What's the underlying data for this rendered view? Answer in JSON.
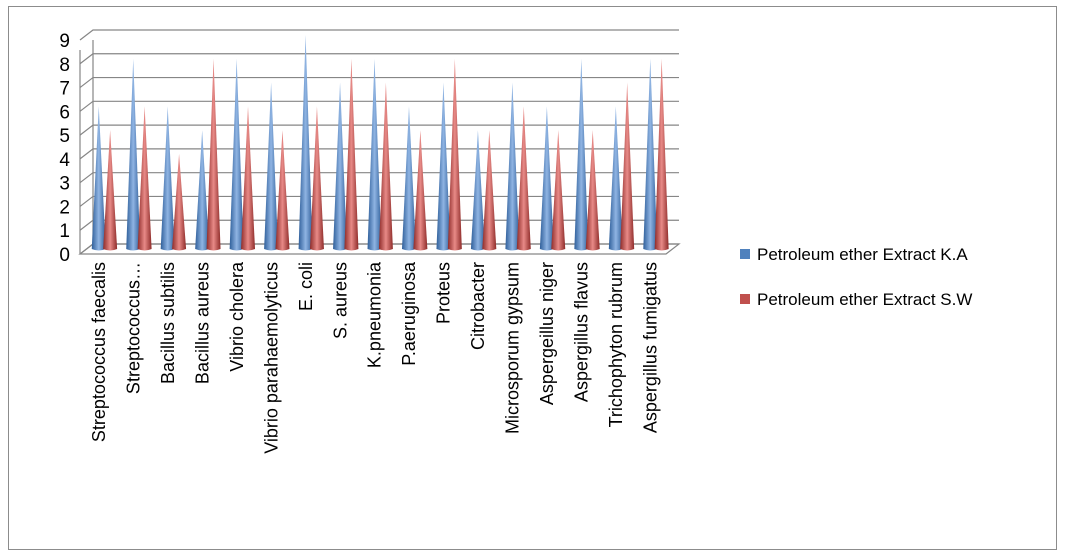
{
  "chart_data": {
    "type": "bar",
    "categories": [
      "Streptococcus faecalis",
      "Streptococcus…",
      "Bacillus subtilis",
      "Bacillus aureus",
      "Vibrio cholera",
      "Vibrio parahaemolyticus",
      "E. coli",
      "S. aureus",
      "K.pneumonia",
      "P.aeruginosa",
      "Proteus",
      "Citrobacter",
      "Microsporum gypsum",
      "Aspergeillus niger",
      "Aspergillus flavus",
      "Trichophyton rubrum",
      "Aspergillus fumigatus"
    ],
    "series": [
      {
        "name": "Petroleum ether Extract K.A",
        "color": "#4f81bd",
        "values": [
          6,
          8,
          6,
          5,
          8,
          7,
          9,
          7,
          8,
          6,
          7,
          5,
          7,
          6,
          8,
          6,
          8
        ]
      },
      {
        "name": "Petroleum ether Extract S.W",
        "color": "#c0504d",
        "values": [
          5,
          6,
          4,
          8,
          6,
          5,
          6,
          8,
          7,
          5,
          8,
          5,
          6,
          5,
          5,
          7,
          8
        ]
      }
    ],
    "ylim": [
      0,
      9
    ],
    "yticks": [
      0,
      1,
      2,
      3,
      4,
      5,
      6,
      7,
      8,
      9
    ],
    "grid": true,
    "legend": "right",
    "style": "3d-cone"
  }
}
